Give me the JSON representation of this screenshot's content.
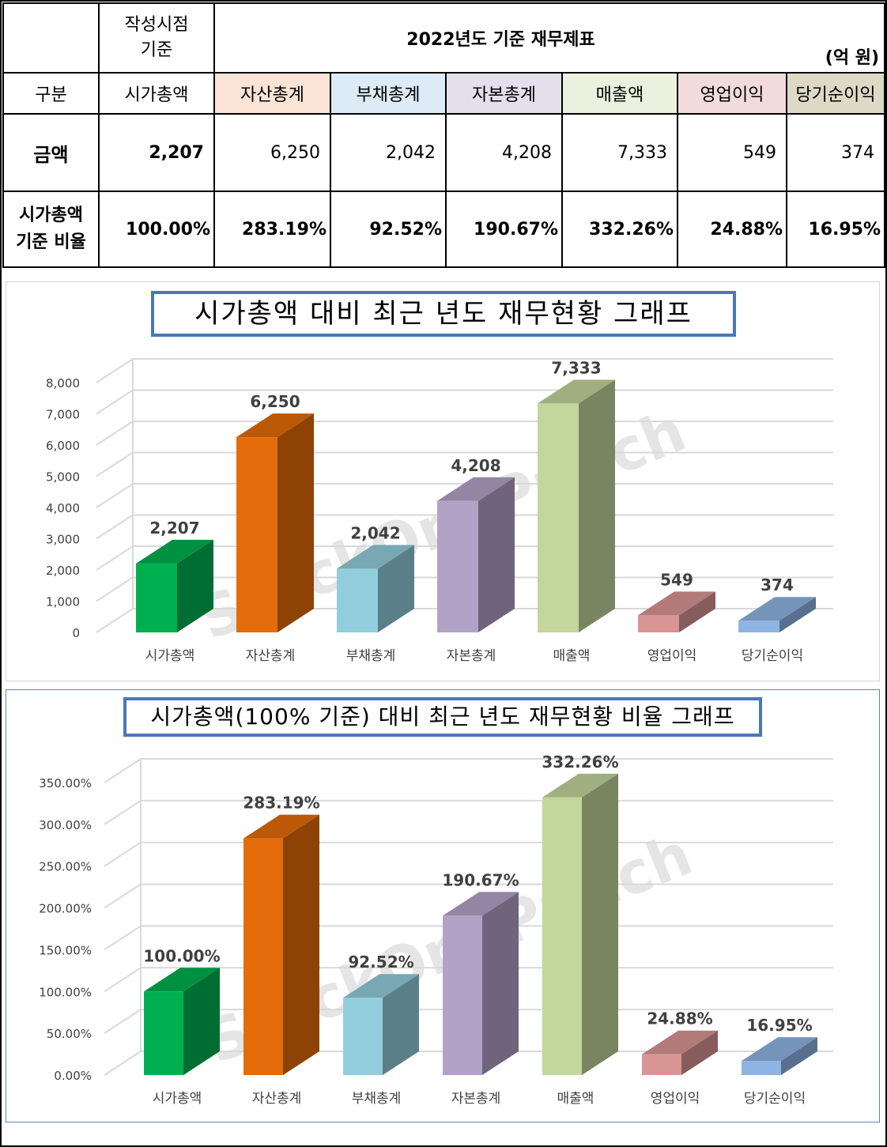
{
  "table": {
    "created_basis": "작성시점\n기준",
    "title": "2022년도 기준 재무제표",
    "unit": "(억 원)",
    "header_label": "구분",
    "columns": [
      "시가총액",
      "자산총계",
      "부채총계",
      "자본총계",
      "매출액",
      "영업이익",
      "당기순이익"
    ],
    "column_colors": [
      "#ffffff",
      "#fbe4d5",
      "#ddebf7",
      "#e4dfec",
      "#ebf1de",
      "#f2dcdb",
      "#ddd9c4"
    ],
    "amount_label": "금액",
    "amounts": [
      "2,207",
      "6,250",
      "2,042",
      "4,208",
      "7,333",
      "549",
      "374"
    ],
    "ratio_label": "시가총액\n기준 비율",
    "ratios": [
      "100.00%",
      "283.19%",
      "92.52%",
      "190.67%",
      "332.26%",
      "24.88%",
      "16.95%"
    ]
  },
  "watermark": "StockOnePunch",
  "chart_data": [
    {
      "type": "bar",
      "title": "시가총액 대비 최근 년도 재무현황 그래프",
      "categories": [
        "시가총액",
        "자산총계",
        "부채총계",
        "자본총계",
        "매출액",
        "영업이익",
        "당기순이익"
      ],
      "values": [
        2207,
        6250,
        2042,
        4208,
        7333,
        549,
        374
      ],
      "data_labels": [
        "2,207",
        "6,250",
        "2,042",
        "4,208",
        "7,333",
        "549",
        "374"
      ],
      "ylim": [
        0,
        8000
      ],
      "yticks": [
        "0",
        "1,000",
        "2,000",
        "3,000",
        "4,000",
        "5,000",
        "6,000",
        "7,000",
        "8,000"
      ],
      "colors": [
        "#00b050",
        "#e46c0a",
        "#92cddc",
        "#b3a2c7",
        "#c3d69b",
        "#d99594",
        "#8eb4e3"
      ],
      "grid": true,
      "style": "3d-column"
    },
    {
      "type": "bar",
      "title": "시가총액(100% 기준) 대비 최근 년도 재무현황 비율 그래프",
      "categories": [
        "시가총액",
        "자산총계",
        "부채총계",
        "자본총계",
        "매출액",
        "영업이익",
        "당기순이익"
      ],
      "values": [
        100.0,
        283.19,
        92.52,
        190.67,
        332.26,
        24.88,
        16.95
      ],
      "data_labels": [
        "100.00%",
        "283.19%",
        "92.52%",
        "190.67%",
        "332.26%",
        "24.88%",
        "16.95%"
      ],
      "ylim": [
        0,
        350
      ],
      "yticks": [
        "0.00%",
        "50.00%",
        "100.00%",
        "150.00%",
        "200.00%",
        "250.00%",
        "300.00%",
        "350.00%"
      ],
      "colors": [
        "#00b050",
        "#e46c0a",
        "#92cddc",
        "#b3a2c7",
        "#c3d69b",
        "#d99594",
        "#8eb4e3"
      ],
      "grid": true,
      "style": "3d-column"
    }
  ]
}
